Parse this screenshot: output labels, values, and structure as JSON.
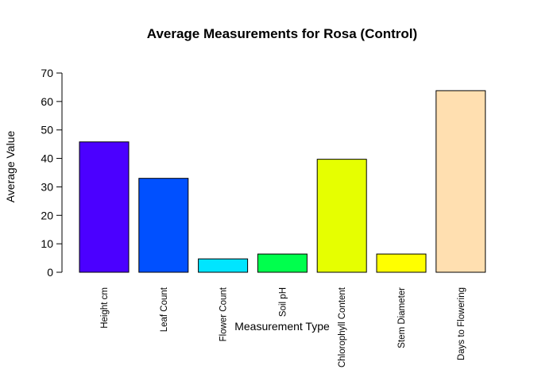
{
  "chart_data": {
    "type": "bar",
    "title": "Average Measurements for Rosa (Control)",
    "xlabel": "Measurement Type",
    "ylabel": "Average Value",
    "ylim": [
      0,
      70
    ],
    "yticks": [
      0,
      10,
      20,
      30,
      40,
      50,
      60,
      70
    ],
    "grid": false,
    "legend": "none",
    "categories": [
      "Height cm",
      "Leaf Count",
      "Flower Count",
      "Soil pH",
      "Chlorophyll Content",
      "Stem Diameter",
      "Days to Flowering"
    ],
    "values": [
      45.8,
      33.0,
      4.7,
      6.4,
      39.7,
      6.4,
      63.8
    ],
    "colors": [
      "#4B00FF",
      "#0050FF",
      "#00E5FF",
      "#00FF4D",
      "#E6FF00",
      "#FFFF00",
      "#FFDFB0"
    ]
  }
}
